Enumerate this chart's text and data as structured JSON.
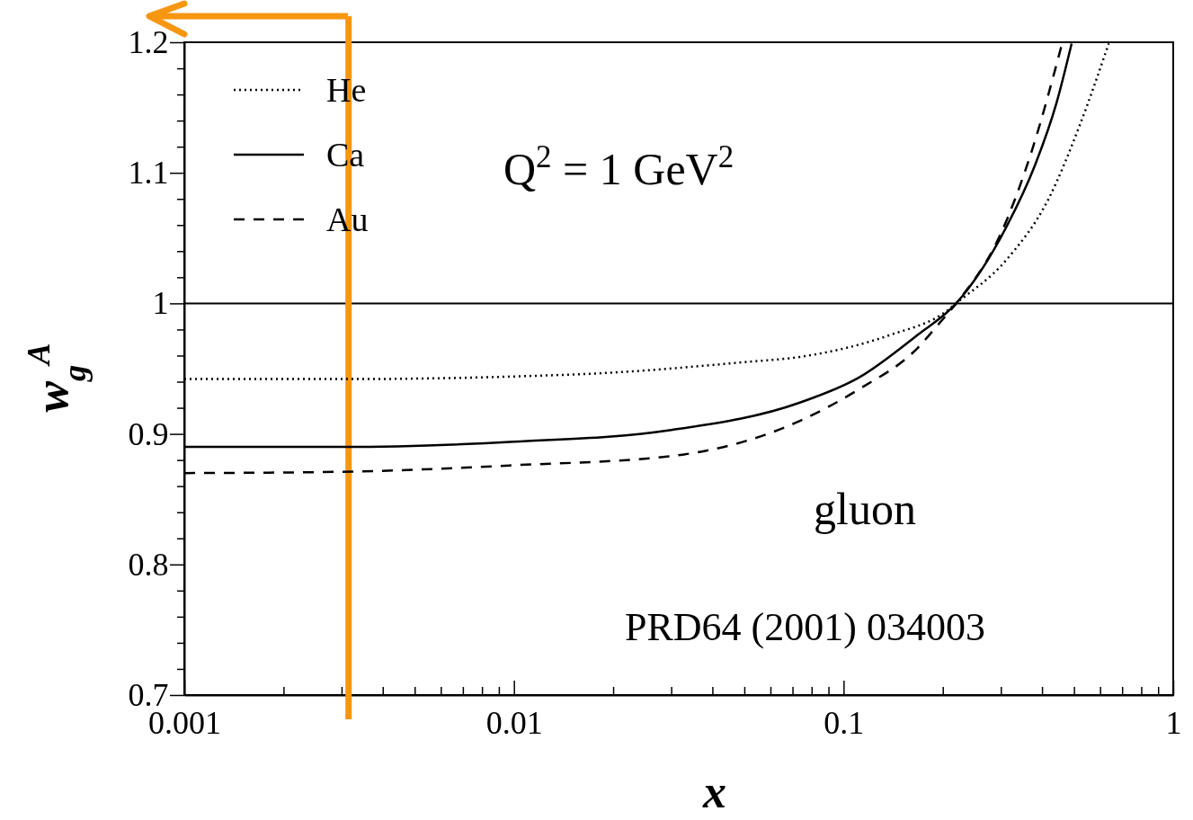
{
  "chart_data": {
    "type": "line",
    "xlabel": "x",
    "ylabel": "w$_{g}$$^{A}$",
    "log": "x",
    "grid": false,
    "legend": "top left",
    "xlim": [
      0.001,
      1
    ],
    "ylim": [
      0.7,
      1.2
    ],
    "xticks": [
      0.001,
      {
        "value": 0.002,
        "label": null
      },
      {
        "value": 0.003,
        "label": null
      },
      {
        "value": 0.004,
        "label": null
      },
      {
        "value": 0.005,
        "label": null
      },
      {
        "value": 0.006,
        "label": null
      },
      {
        "value": 0.007,
        "label": null
      },
      {
        "value": 0.008,
        "label": null
      },
      {
        "value": 0.009,
        "label": null
      },
      0.01,
      {
        "value": 0.02,
        "label": null
      },
      {
        "value": 0.03,
        "label": null
      },
      {
        "value": 0.04,
        "label": null
      },
      {
        "value": 0.05,
        "label": null
      },
      {
        "value": 0.06,
        "label": null
      },
      {
        "value": 0.07,
        "label": null
      },
      {
        "value": 0.08,
        "label": null
      },
      {
        "value": 0.09,
        "label": null
      },
      0.1,
      {
        "value": 0.2,
        "label": null
      },
      {
        "value": 0.3,
        "label": null
      },
      {
        "value": 0.4,
        "label": null
      },
      {
        "value": 0.5,
        "label": null
      },
      {
        "value": 0.6,
        "label": null
      },
      {
        "value": 0.7,
        "label": null
      },
      {
        "value": 0.8,
        "label": null
      },
      {
        "value": 0.9,
        "label": null
      },
      1
    ],
    "yticks": [
      0.7,
      {
        "value": 0.72,
        "label": null
      },
      {
        "value": 0.74,
        "label": null
      },
      {
        "value": 0.76,
        "label": null
      },
      {
        "value": 0.78,
        "label": null
      },
      0.8,
      {
        "value": 0.82,
        "label": null
      },
      {
        "value": 0.84,
        "label": null
      },
      {
        "value": 0.86,
        "label": null
      },
      {
        "value": 0.88,
        "label": null
      },
      0.9,
      {
        "value": 0.92,
        "label": null
      },
      {
        "value": 0.94,
        "label": null
      },
      {
        "value": 0.96,
        "label": null
      },
      {
        "value": 0.98,
        "label": null
      },
      1,
      {
        "value": 1.02,
        "label": null
      },
      {
        "value": 1.04,
        "label": null
      },
      {
        "value": 1.06,
        "label": null
      },
      {
        "value": 1.08,
        "label": null
      },
      1.1,
      {
        "value": 1.12,
        "label": null
      },
      {
        "value": 1.14,
        "label": null
      },
      {
        "value": 1.16,
        "label": null
      },
      {
        "value": 1.18,
        "label": null
      },
      1.2
    ],
    "series": [
      {
        "name": "He",
        "color": "#000000",
        "line_style": "dotted",
        "x": [
          0.001,
          0.003,
          0.01,
          0.02,
          0.05,
          0.0737,
          0.1373,
          0.2077,
          0.2196,
          0.311,
          0.4205,
          0.5197,
          0.6373
        ],
        "values": [
          0.942,
          0.942,
          0.944,
          0.947,
          0.955,
          0.959,
          0.9755,
          0.995,
          1.0,
          1.033,
          1.081,
          1.136,
          1.199
        ]
      },
      {
        "name": "Ca",
        "color": "#000000",
        "line_style": "solid",
        "x": [
          0.001,
          0.003,
          0.01,
          0.03,
          0.0737,
          0.111,
          0.168,
          0.2196,
          0.311,
          0.381,
          0.443,
          0.4918
        ],
        "values": [
          0.89,
          0.89,
          0.894,
          0.903,
          0.924,
          0.943,
          0.976,
          1.0,
          1.058,
          1.106,
          1.154,
          1.199
        ]
      },
      {
        "name": "Au",
        "color": "#000000",
        "line_style": "dashed",
        "x": [
          0.001,
          0.003,
          0.01,
          0.03,
          0.0737,
          0.111,
          0.168,
          0.194,
          0.2196,
          0.2994,
          0.3726,
          0.4601
        ],
        "values": [
          0.87,
          0.871,
          0.876,
          0.883,
          0.91,
          0.934,
          0.966,
          0.984,
          1.0,
          1.053,
          1.117,
          1.199
        ]
      }
    ],
    "ref_lines": [
      {
        "axis": "y",
        "value": 1,
        "color": "#000000",
        "line_style": "solid"
      },
      {
        "axis": "x",
        "value": 0.00315,
        "color": "#f7960f",
        "line_style": "solid"
      }
    ],
    "annotations": [
      "Q$^{2}$ = 1 GeV$^{2}$",
      "gluon",
      "PRD64 (2001) 034003"
    ]
  }
}
